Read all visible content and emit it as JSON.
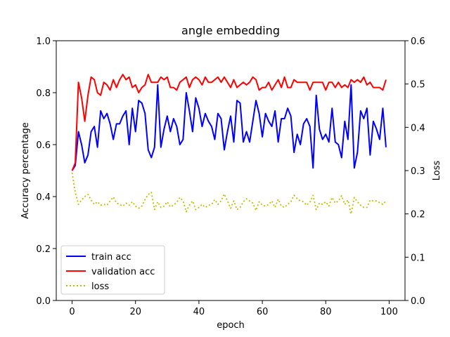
{
  "chart_data": {
    "type": "line",
    "title": "angle embedding",
    "xlabel": "epoch",
    "ylabel": "Accuracy percentage",
    "y2label": "Loss",
    "xlim": [
      -5,
      105
    ],
    "ylim": [
      0.0,
      1.0
    ],
    "y2lim": [
      0.0,
      0.6
    ],
    "xticks": [
      0,
      20,
      40,
      60,
      80,
      100
    ],
    "yticks": [
      0.0,
      0.2,
      0.4,
      0.6,
      0.8,
      1.0
    ],
    "y2ticks": [
      0.0,
      0.1,
      0.2,
      0.3,
      0.4,
      0.5,
      0.6
    ],
    "grid": false,
    "legend_position": "lower-left",
    "x": [
      0,
      1,
      2,
      3,
      4,
      5,
      6,
      7,
      8,
      9,
      10,
      11,
      12,
      13,
      14,
      15,
      16,
      17,
      18,
      19,
      20,
      21,
      22,
      23,
      24,
      25,
      26,
      27,
      28,
      29,
      30,
      31,
      32,
      33,
      34,
      35,
      36,
      37,
      38,
      39,
      40,
      41,
      42,
      43,
      44,
      45,
      46,
      47,
      48,
      49,
      50,
      51,
      52,
      53,
      54,
      55,
      56,
      57,
      58,
      59,
      60,
      61,
      62,
      63,
      64,
      65,
      66,
      67,
      68,
      69,
      70,
      71,
      72,
      73,
      74,
      75,
      76,
      77,
      78,
      79,
      80,
      81,
      82,
      83,
      84,
      85,
      86,
      87,
      88,
      89,
      90,
      91,
      92,
      93,
      94,
      95,
      96,
      97,
      98,
      99
    ],
    "series": [
      {
        "name": "train acc",
        "color": "#0000ff",
        "dash": "solid",
        "axis": "left",
        "values": [
          0.5,
          0.52,
          0.65,
          0.6,
          0.53,
          0.56,
          0.65,
          0.67,
          0.59,
          0.73,
          0.7,
          0.72,
          0.68,
          0.62,
          0.68,
          0.68,
          0.71,
          0.73,
          0.6,
          0.74,
          0.65,
          0.77,
          0.76,
          0.72,
          0.58,
          0.55,
          0.59,
          0.83,
          0.59,
          0.66,
          0.71,
          0.65,
          0.7,
          0.67,
          0.6,
          0.62,
          0.8,
          0.73,
          0.65,
          0.78,
          0.74,
          0.67,
          0.72,
          0.69,
          0.67,
          0.62,
          0.72,
          0.7,
          0.58,
          0.65,
          0.71,
          0.61,
          0.77,
          0.76,
          0.61,
          0.65,
          0.61,
          0.69,
          0.77,
          0.72,
          0.63,
          0.72,
          0.69,
          0.67,
          0.73,
          0.61,
          0.7,
          0.7,
          0.74,
          0.71,
          0.57,
          0.64,
          0.6,
          0.68,
          0.7,
          0.67,
          0.51,
          0.79,
          0.66,
          0.62,
          0.64,
          0.61,
          0.74,
          0.61,
          0.6,
          0.55,
          0.69,
          0.62,
          0.83,
          0.51,
          0.57,
          0.73,
          0.7,
          0.74,
          0.56,
          0.69,
          0.66,
          0.62,
          0.74,
          0.59
        ]
      },
      {
        "name": "validation acc",
        "color": "#ff0000",
        "dash": "solid",
        "axis": "left",
        "values": [
          0.5,
          0.53,
          0.84,
          0.78,
          0.69,
          0.79,
          0.86,
          0.85,
          0.8,
          0.79,
          0.84,
          0.83,
          0.81,
          0.85,
          0.82,
          0.85,
          0.87,
          0.85,
          0.86,
          0.82,
          0.83,
          0.8,
          0.82,
          0.83,
          0.87,
          0.84,
          0.84,
          0.84,
          0.86,
          0.85,
          0.86,
          0.82,
          0.82,
          0.81,
          0.84,
          0.85,
          0.86,
          0.82,
          0.85,
          0.86,
          0.85,
          0.83,
          0.86,
          0.84,
          0.84,
          0.85,
          0.86,
          0.84,
          0.86,
          0.84,
          0.82,
          0.85,
          0.82,
          0.83,
          0.84,
          0.83,
          0.84,
          0.86,
          0.85,
          0.81,
          0.82,
          0.82,
          0.84,
          0.81,
          0.83,
          0.85,
          0.82,
          0.86,
          0.82,
          0.82,
          0.85,
          0.84,
          0.84,
          0.84,
          0.84,
          0.81,
          0.84,
          0.84,
          0.84,
          0.84,
          0.81,
          0.84,
          0.84,
          0.82,
          0.84,
          0.82,
          0.83,
          0.82,
          0.85,
          0.84,
          0.85,
          0.84,
          0.86,
          0.83,
          0.84,
          0.82,
          0.82,
          0.82,
          0.81,
          0.85
        ]
      },
      {
        "name": "loss",
        "color": "#bfbf00",
        "dash": "dotted",
        "axis": "right",
        "values": [
          0.295,
          0.25,
          0.222,
          0.232,
          0.24,
          0.245,
          0.232,
          0.222,
          0.228,
          0.22,
          0.222,
          0.22,
          0.23,
          0.239,
          0.225,
          0.222,
          0.218,
          0.225,
          0.22,
          0.228,
          0.218,
          0.213,
          0.218,
          0.233,
          0.245,
          0.25,
          0.21,
          0.228,
          0.215,
          0.218,
          0.228,
          0.216,
          0.22,
          0.227,
          0.238,
          0.23,
          0.205,
          0.22,
          0.23,
          0.21,
          0.215,
          0.222,
          0.215,
          0.22,
          0.222,
          0.233,
          0.222,
          0.23,
          0.246,
          0.23,
          0.213,
          0.23,
          0.21,
          0.215,
          0.228,
          0.235,
          0.23,
          0.225,
          0.208,
          0.228,
          0.22,
          0.218,
          0.222,
          0.23,
          0.215,
          0.234,
          0.218,
          0.215,
          0.222,
          0.228,
          0.243,
          0.235,
          0.23,
          0.228,
          0.22,
          0.227,
          0.243,
          0.21,
          0.225,
          0.222,
          0.228,
          0.218,
          0.238,
          0.225,
          0.23,
          0.242,
          0.222,
          0.232,
          0.2,
          0.238,
          0.228,
          0.22,
          0.215,
          0.215,
          0.232,
          0.23,
          0.23,
          0.226,
          0.222,
          0.23
        ]
      }
    ]
  }
}
